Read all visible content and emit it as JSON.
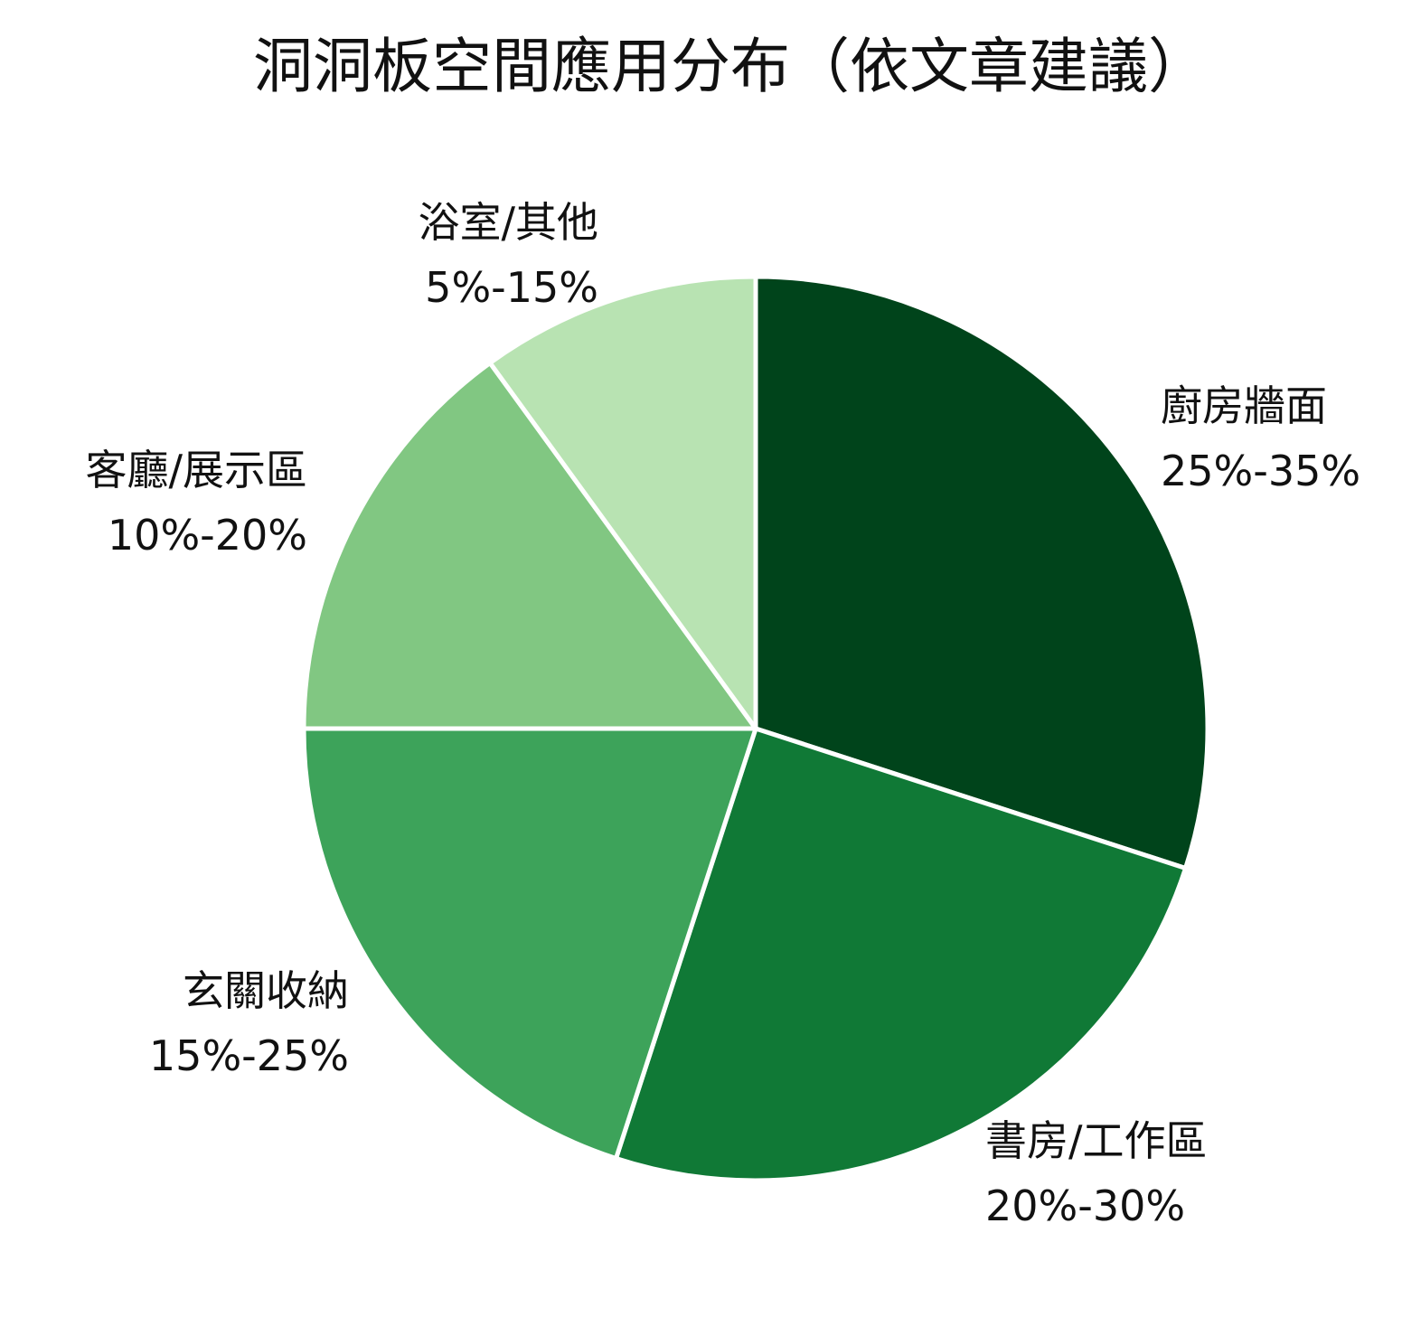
{
  "chart_data": {
    "type": "pie",
    "title": "洞洞板空間應用分布（依文章建議）",
    "start_angle_deg": 0,
    "direction": "clockwise",
    "slices": [
      {
        "label": "廚房牆面",
        "range_text": "25%-35%",
        "value": 30,
        "color": "#00441b"
      },
      {
        "label": "書房/工作區",
        "range_text": "20%-30%",
        "value": 25,
        "color": "#107936"
      },
      {
        "label": "玄關收納",
        "range_text": "15%-25%",
        "value": 20,
        "color": "#3da35a"
      },
      {
        "label": "客廳/展示區",
        "range_text": "10%-20%",
        "value": 15,
        "color": "#81c782"
      },
      {
        "label": "浴室/其他",
        "range_text": "5%-15%",
        "value": 10,
        "color": "#b8e3b2"
      }
    ]
  }
}
